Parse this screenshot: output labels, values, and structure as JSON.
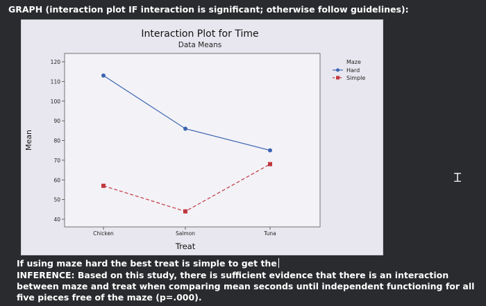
{
  "heading": "GRAPH (interaction plot IF interaction is significant; otherwise follow guidelines):",
  "answer_prompt": "If using maze hard the best treat is simple to get the",
  "inference": "INFERENCE: Based on this study, there is sufficient evidence that there is an interaction between maze and treat when comparing mean seconds until independent functioning for all five pieces free of the maze (p=.000).",
  "cursor_icon": "text-cursor-icon",
  "chart_data": {
    "type": "line",
    "title": "Interaction Plot for Time",
    "subtitle": "Data Means",
    "xlabel": "Treat",
    "ylabel": "Mean",
    "categories": [
      "Chicken",
      "Salmon",
      "Tuna"
    ],
    "ylim": [
      40,
      120
    ],
    "yticks": [
      40,
      50,
      60,
      70,
      80,
      90,
      100,
      110,
      120
    ],
    "legend_title": "Maze",
    "legend_position": "top-right",
    "series": [
      {
        "name": "Hard",
        "values": [
          113,
          86,
          75
        ],
        "color": "#3a64b0",
        "marker": "circle",
        "dash": "solid"
      },
      {
        "name": "Simple",
        "values": [
          57,
          44,
          68
        ],
        "color": "#c0373e",
        "marker": "square",
        "dash": "dashed"
      }
    ]
  }
}
